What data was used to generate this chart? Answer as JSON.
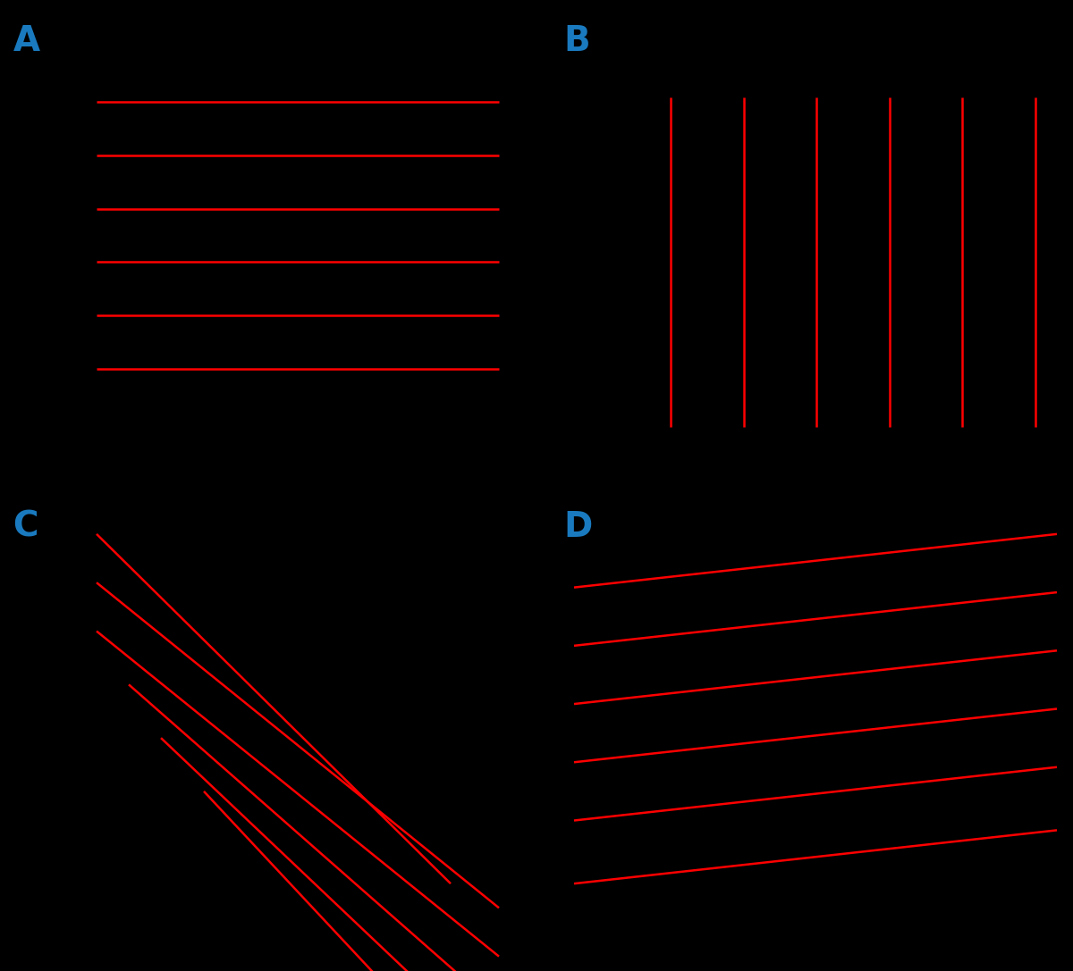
{
  "background_color": "#000000",
  "line_color": "#ff0000",
  "label_color": "#1a7abf",
  "label_fontsize": 28,
  "label_fontweight": "bold",
  "figsize": [
    12.0,
    10.87
  ],
  "dpi": 100,
  "panel_A": {
    "label": "A",
    "label_fx": 0.012,
    "label_fy": 0.975,
    "lines": [
      [
        0.09,
        0.895,
        0.465,
        0.895
      ],
      [
        0.09,
        0.84,
        0.465,
        0.84
      ],
      [
        0.09,
        0.785,
        0.465,
        0.785
      ],
      [
        0.09,
        0.73,
        0.465,
        0.73
      ],
      [
        0.09,
        0.675,
        0.465,
        0.675
      ],
      [
        0.09,
        0.62,
        0.465,
        0.62
      ]
    ]
  },
  "panel_B": {
    "label": "B",
    "label_fx": 0.525,
    "label_fy": 0.975,
    "lines": [
      [
        0.625,
        0.9,
        0.625,
        0.56
      ],
      [
        0.693,
        0.9,
        0.693,
        0.56
      ],
      [
        0.761,
        0.9,
        0.761,
        0.56
      ],
      [
        0.829,
        0.9,
        0.829,
        0.56
      ],
      [
        0.897,
        0.9,
        0.897,
        0.56
      ],
      [
        0.965,
        0.9,
        0.965,
        0.56
      ]
    ]
  },
  "panel_C": {
    "label": "C",
    "label_fx": 0.012,
    "label_fy": 0.475,
    "lines": [
      [
        0.09,
        0.45,
        0.42,
        0.09
      ],
      [
        0.09,
        0.4,
        0.465,
        0.065
      ],
      [
        0.09,
        0.35,
        0.465,
        0.015
      ],
      [
        0.12,
        0.295,
        0.465,
        -0.04
      ],
      [
        0.15,
        0.24,
        0.465,
        -0.09
      ],
      [
        0.19,
        0.185,
        0.465,
        -0.14
      ]
    ]
  },
  "panel_D": {
    "label": "D",
    "label_fx": 0.525,
    "label_fy": 0.475,
    "lines": [
      [
        0.535,
        0.395,
        0.985,
        0.45
      ],
      [
        0.535,
        0.335,
        0.985,
        0.39
      ],
      [
        0.535,
        0.275,
        0.985,
        0.33
      ],
      [
        0.535,
        0.215,
        0.985,
        0.27
      ],
      [
        0.535,
        0.155,
        0.985,
        0.21
      ],
      [
        0.535,
        0.09,
        0.985,
        0.145
      ]
    ]
  }
}
